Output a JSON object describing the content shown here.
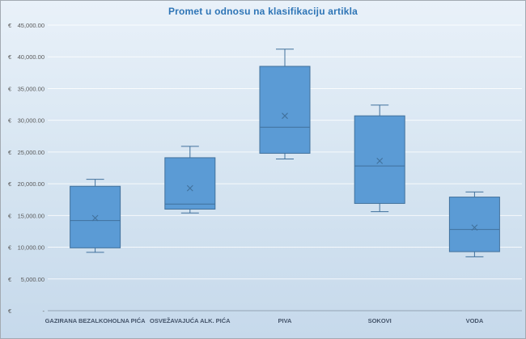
{
  "chart_data": {
    "type": "boxplot",
    "title": "Promet u odnosu na klasifikaciju artikla",
    "legend": "none",
    "grid": true,
    "categories": [
      "GAZIRANA BEZALKOHOLNA PIĆA",
      "OSVEŽAVAJUĆA ALK. PIĆA",
      "PIVA",
      "SOKOVI",
      "VODA"
    ],
    "series": [
      {
        "name": "GAZIRANA BEZALKOHOLNA PIĆA",
        "whisker_low": 9200,
        "q1": 9900,
        "median": 14200,
        "mean": 14600,
        "q3": 19600,
        "whisker_high": 20700
      },
      {
        "name": "OSVEŽAVAJUĆA ALK. PIĆA",
        "whisker_low": 15400,
        "q1": 16000,
        "median": 16800,
        "mean": 19300,
        "q3": 24100,
        "whisker_high": 25900
      },
      {
        "name": "PIVA",
        "whisker_low": 23900,
        "q1": 24800,
        "median": 28900,
        "mean": 30700,
        "q3": 38500,
        "whisker_high": 41200
      },
      {
        "name": "SOKOVI",
        "whisker_low": 15600,
        "q1": 16900,
        "median": 22800,
        "mean": 23600,
        "q3": 30700,
        "whisker_high": 32400
      },
      {
        "name": "VODA",
        "whisker_low": 8500,
        "q1": 9300,
        "median": 12800,
        "mean": 13100,
        "q3": 17900,
        "whisker_high": 18700
      }
    ],
    "y_axis": {
      "min": 0,
      "max": 45000,
      "step": 5000,
      "tick_labels_bottom_to_top": [
        "€ -",
        "€ 5,000.00",
        "€ 10,000.00",
        "€ 15,000.00",
        "€ 20,000.00",
        "€ 25,000.00",
        "€ 30,000.00",
        "€ 35,000.00",
        "€ 40,000.00",
        "€ 45,000.00"
      ]
    },
    "colors": {
      "box_fill": "#5B9BD5",
      "box_stroke": "#41719C",
      "title": "#2E75B6",
      "gridline": "rgba(255,255,255,0.8)",
      "axis_line": "#93a3b4",
      "axis_text": "#595959",
      "category_text": "#44546A",
      "bg_top": "#e9f1f9",
      "bg_mid": "#d8e6f2",
      "bg_bottom": "#c6d9eb"
    }
  }
}
